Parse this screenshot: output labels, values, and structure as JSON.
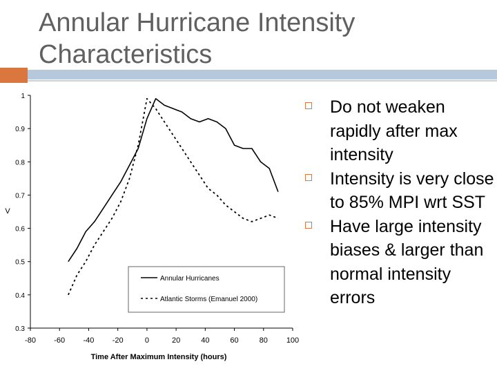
{
  "slide": {
    "title": "Annular Hurricane Intensity Characteristics"
  },
  "bullets": [
    "Do not weaken rapidly after max intensity",
    "Intensity is very close to 85% MPI wrt SST",
    "Have large intensity biases & larger than normal intensity errors"
  ],
  "colors": {
    "accent_orange": "#d9773f",
    "accent_blue": "#b5c8dc",
    "title_text": "#606060"
  },
  "chart_data": {
    "type": "line",
    "title": "",
    "xlabel": "Time After Maximum Intensity (hours)",
    "ylabel": "V",
    "xlim": [
      -80,
      100
    ],
    "ylim": [
      0.3,
      1
    ],
    "x_ticks": [
      -80,
      -60,
      -40,
      -20,
      0,
      20,
      40,
      60,
      80,
      100
    ],
    "y_ticks": [
      0.3,
      0.4,
      0.5,
      0.6,
      0.7,
      0.8,
      0.9,
      1
    ],
    "grid": false,
    "legend_position": "lower-center",
    "series": [
      {
        "name": "Annular Hurricanes",
        "style": "solid",
        "x": [
          -54,
          -48,
          -42,
          -36,
          -30,
          -24,
          -18,
          -12,
          -6,
          0,
          6,
          12,
          18,
          24,
          30,
          36,
          42,
          48,
          54,
          60,
          66,
          72,
          78,
          84,
          90
        ],
        "y": [
          0.5,
          0.54,
          0.59,
          0.62,
          0.66,
          0.7,
          0.74,
          0.79,
          0.84,
          0.93,
          0.99,
          0.97,
          0.96,
          0.95,
          0.93,
          0.92,
          0.93,
          0.92,
          0.9,
          0.85,
          0.84,
          0.84,
          0.8,
          0.78,
          0.71
        ]
      },
      {
        "name": "Atlantic Storms (Emanuel 2000)",
        "style": "dashed",
        "x": [
          -54,
          -48,
          -42,
          -36,
          -30,
          -24,
          -18,
          -12,
          -6,
          0,
          6,
          12,
          18,
          24,
          30,
          36,
          42,
          48,
          54,
          60,
          66,
          72,
          78,
          84,
          90
        ],
        "y": [
          0.4,
          0.46,
          0.5,
          0.55,
          0.59,
          0.63,
          0.68,
          0.75,
          0.85,
          0.99,
          0.96,
          0.92,
          0.88,
          0.84,
          0.8,
          0.76,
          0.72,
          0.7,
          0.67,
          0.65,
          0.63,
          0.62,
          0.63,
          0.64,
          0.63
        ]
      }
    ]
  }
}
